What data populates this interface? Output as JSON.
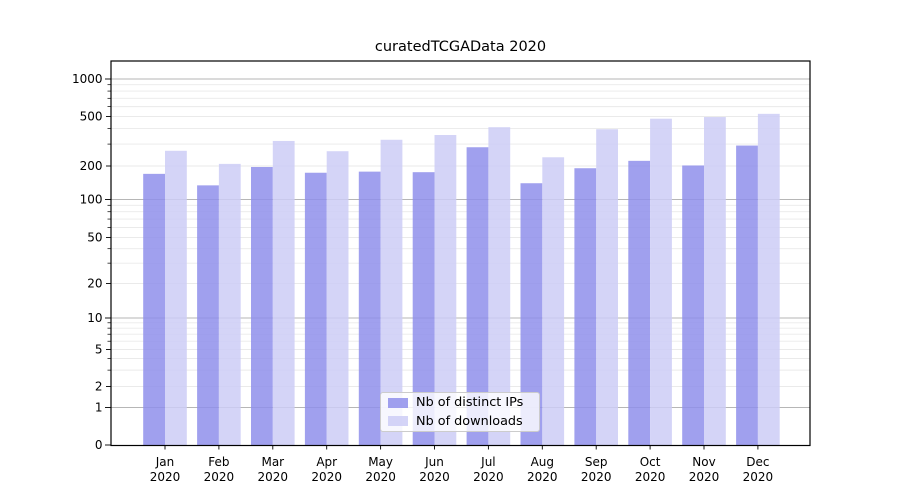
{
  "title": "curatedTCGAData 2020",
  "chart_data": {
    "type": "bar",
    "title": "curatedTCGAData 2020",
    "categories": [
      {
        "month": "Jan",
        "year": "2020"
      },
      {
        "month": "Feb",
        "year": "2020"
      },
      {
        "month": "Mar",
        "year": "2020"
      },
      {
        "month": "Apr",
        "year": "2020"
      },
      {
        "month": "May",
        "year": "2020"
      },
      {
        "month": "Jun",
        "year": "2020"
      },
      {
        "month": "Jul",
        "year": "2020"
      },
      {
        "month": "Aug",
        "year": "2020"
      },
      {
        "month": "Sep",
        "year": "2020"
      },
      {
        "month": "Oct",
        "year": "2020"
      },
      {
        "month": "Nov",
        "year": "2020"
      },
      {
        "month": "Dec",
        "year": "2020"
      }
    ],
    "series": [
      {
        "name": "Nb of distinct IPs",
        "color_rgb": "143,143,235",
        "values": [
          170,
          134,
          196,
          174,
          178,
          176,
          283,
          140,
          191,
          220,
          202,
          292
        ]
      },
      {
        "name": "Nb of downloads",
        "color_rgb": "205,205,246",
        "values": [
          265,
          208,
          318,
          263,
          325,
          355,
          410,
          235,
          395,
          480,
          495,
          525
        ]
      }
    ],
    "bar_alpha": 0.85,
    "xlabel": "",
    "ylabel": "",
    "yscale": "symlog",
    "ylim": [
      0,
      1400
    ],
    "yticks_labeled": [
      0,
      1,
      2,
      5,
      10,
      20,
      50,
      100,
      200,
      500,
      1000
    ],
    "yticks_major": [
      0,
      1,
      10,
      100,
      1000
    ],
    "grid": true,
    "grid_major_color": "#b6b6b6",
    "grid_minor_color": "#eaeaea",
    "legend_position": "lower center",
    "text_color": "#000000",
    "background_color": "#ffffff"
  }
}
